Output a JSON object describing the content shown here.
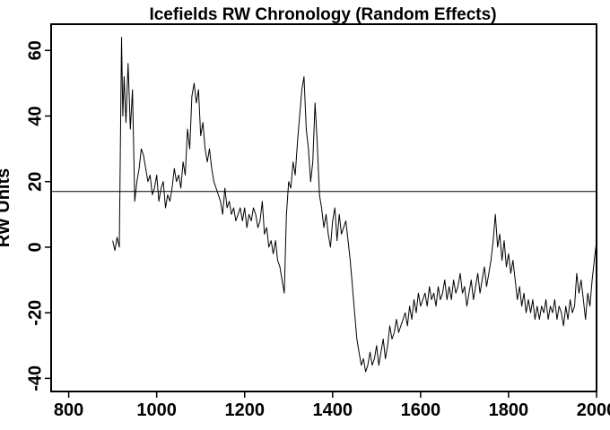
{
  "chart_data": {
    "type": "line",
    "title": "Icefields RW Chronology (Random Effects)",
    "xlabel": "",
    "ylabel": "RW Units",
    "xlim": [
      760,
      2000
    ],
    "ylim": [
      -44,
      68
    ],
    "x_ticks": [
      800,
      1000,
      1200,
      1400,
      1600,
      1800,
      2000
    ],
    "y_ticks": [
      -40,
      -20,
      0,
      20,
      40,
      60
    ],
    "reference_line": {
      "y": 17
    },
    "grid": false,
    "series": [
      {
        "name": "Icefields RW chronology",
        "points": [
          [
            900,
            2
          ],
          [
            905,
            -1
          ],
          [
            910,
            3
          ],
          [
            915,
            0
          ],
          [
            920,
            64
          ],
          [
            923,
            40
          ],
          [
            926,
            52
          ],
          [
            930,
            38
          ],
          [
            935,
            56
          ],
          [
            940,
            36
          ],
          [
            945,
            48
          ],
          [
            950,
            14
          ],
          [
            955,
            20
          ],
          [
            960,
            24
          ],
          [
            965,
            30
          ],
          [
            970,
            28
          ],
          [
            975,
            24
          ],
          [
            980,
            20
          ],
          [
            985,
            22
          ],
          [
            990,
            16
          ],
          [
            995,
            18
          ],
          [
            1000,
            22
          ],
          [
            1005,
            14
          ],
          [
            1010,
            18
          ],
          [
            1015,
            20
          ],
          [
            1020,
            12
          ],
          [
            1025,
            16
          ],
          [
            1030,
            14
          ],
          [
            1035,
            18
          ],
          [
            1040,
            24
          ],
          [
            1045,
            20
          ],
          [
            1050,
            22
          ],
          [
            1055,
            18
          ],
          [
            1060,
            26
          ],
          [
            1065,
            22
          ],
          [
            1070,
            36
          ],
          [
            1075,
            30
          ],
          [
            1080,
            46
          ],
          [
            1085,
            50
          ],
          [
            1090,
            44
          ],
          [
            1095,
            48
          ],
          [
            1100,
            34
          ],
          [
            1105,
            38
          ],
          [
            1110,
            30
          ],
          [
            1115,
            26
          ],
          [
            1120,
            30
          ],
          [
            1125,
            24
          ],
          [
            1130,
            20
          ],
          [
            1135,
            18
          ],
          [
            1140,
            16
          ],
          [
            1145,
            14
          ],
          [
            1150,
            10
          ],
          [
            1155,
            18
          ],
          [
            1160,
            12
          ],
          [
            1165,
            14
          ],
          [
            1170,
            10
          ],
          [
            1175,
            12
          ],
          [
            1180,
            8
          ],
          [
            1185,
            10
          ],
          [
            1190,
            12
          ],
          [
            1195,
            8
          ],
          [
            1200,
            12
          ],
          [
            1205,
            6
          ],
          [
            1210,
            10
          ],
          [
            1215,
            8
          ],
          [
            1220,
            12
          ],
          [
            1225,
            10
          ],
          [
            1230,
            6
          ],
          [
            1235,
            8
          ],
          [
            1240,
            14
          ],
          [
            1245,
            4
          ],
          [
            1250,
            6
          ],
          [
            1255,
            0
          ],
          [
            1260,
            2
          ],
          [
            1265,
            -2
          ],
          [
            1270,
            2
          ],
          [
            1275,
            -4
          ],
          [
            1280,
            -6
          ],
          [
            1285,
            -10
          ],
          [
            1290,
            -14
          ],
          [
            1295,
            10
          ],
          [
            1300,
            20
          ],
          [
            1305,
            18
          ],
          [
            1310,
            26
          ],
          [
            1315,
            22
          ],
          [
            1320,
            32
          ],
          [
            1325,
            40
          ],
          [
            1330,
            48
          ],
          [
            1335,
            52
          ],
          [
            1340,
            36
          ],
          [
            1345,
            30
          ],
          [
            1350,
            20
          ],
          [
            1355,
            26
          ],
          [
            1360,
            44
          ],
          [
            1365,
            32
          ],
          [
            1370,
            16
          ],
          [
            1375,
            12
          ],
          [
            1380,
            6
          ],
          [
            1385,
            10
          ],
          [
            1390,
            4
          ],
          [
            1395,
            0
          ],
          [
            1400,
            8
          ],
          [
            1405,
            12
          ],
          [
            1410,
            2
          ],
          [
            1415,
            10
          ],
          [
            1420,
            4
          ],
          [
            1425,
            6
          ],
          [
            1430,
            8
          ],
          [
            1435,
            2
          ],
          [
            1440,
            -4
          ],
          [
            1445,
            -12
          ],
          [
            1450,
            -20
          ],
          [
            1455,
            -28
          ],
          [
            1460,
            -32
          ],
          [
            1465,
            -36
          ],
          [
            1470,
            -34
          ],
          [
            1475,
            -38
          ],
          [
            1480,
            -36
          ],
          [
            1485,
            -32
          ],
          [
            1490,
            -36
          ],
          [
            1495,
            -34
          ],
          [
            1500,
            -30
          ],
          [
            1505,
            -36
          ],
          [
            1510,
            -32
          ],
          [
            1515,
            -28
          ],
          [
            1520,
            -34
          ],
          [
            1525,
            -30
          ],
          [
            1530,
            -24
          ],
          [
            1535,
            -28
          ],
          [
            1540,
            -26
          ],
          [
            1545,
            -22
          ],
          [
            1550,
            -26
          ],
          [
            1555,
            -24
          ],
          [
            1560,
            -22
          ],
          [
            1565,
            -20
          ],
          [
            1570,
            -24
          ],
          [
            1575,
            -18
          ],
          [
            1580,
            -22
          ],
          [
            1585,
            -16
          ],
          [
            1590,
            -20
          ],
          [
            1595,
            -14
          ],
          [
            1600,
            -18
          ],
          [
            1605,
            -16
          ],
          [
            1610,
            -14
          ],
          [
            1615,
            -18
          ],
          [
            1620,
            -12
          ],
          [
            1625,
            -16
          ],
          [
            1630,
            -14
          ],
          [
            1635,
            -18
          ],
          [
            1640,
            -12
          ],
          [
            1645,
            -16
          ],
          [
            1650,
            -14
          ],
          [
            1655,
            -10
          ],
          [
            1660,
            -16
          ],
          [
            1665,
            -12
          ],
          [
            1670,
            -16
          ],
          [
            1675,
            -10
          ],
          [
            1680,
            -14
          ],
          [
            1685,
            -12
          ],
          [
            1690,
            -8
          ],
          [
            1695,
            -14
          ],
          [
            1700,
            -12
          ],
          [
            1705,
            -18
          ],
          [
            1710,
            -14
          ],
          [
            1715,
            -10
          ],
          [
            1720,
            -16
          ],
          [
            1725,
            -12
          ],
          [
            1730,
            -8
          ],
          [
            1735,
            -14
          ],
          [
            1740,
            -10
          ],
          [
            1745,
            -6
          ],
          [
            1750,
            -12
          ],
          [
            1755,
            -8
          ],
          [
            1760,
            -4
          ],
          [
            1765,
            2
          ],
          [
            1770,
            10
          ],
          [
            1775,
            0
          ],
          [
            1780,
            4
          ],
          [
            1785,
            -4
          ],
          [
            1790,
            2
          ],
          [
            1795,
            -6
          ],
          [
            1800,
            -2
          ],
          [
            1805,
            -8
          ],
          [
            1810,
            -4
          ],
          [
            1815,
            -10
          ],
          [
            1820,
            -16
          ],
          [
            1825,
            -12
          ],
          [
            1830,
            -18
          ],
          [
            1835,
            -14
          ],
          [
            1840,
            -20
          ],
          [
            1845,
            -16
          ],
          [
            1850,
            -20
          ],
          [
            1855,
            -16
          ],
          [
            1860,
            -22
          ],
          [
            1865,
            -18
          ],
          [
            1870,
            -22
          ],
          [
            1875,
            -18
          ],
          [
            1880,
            -20
          ],
          [
            1885,
            -16
          ],
          [
            1890,
            -22
          ],
          [
            1895,
            -18
          ],
          [
            1900,
            -20
          ],
          [
            1905,
            -16
          ],
          [
            1910,
            -22
          ],
          [
            1915,
            -18
          ],
          [
            1920,
            -20
          ],
          [
            1925,
            -24
          ],
          [
            1930,
            -18
          ],
          [
            1935,
            -22
          ],
          [
            1940,
            -16
          ],
          [
            1945,
            -20
          ],
          [
            1950,
            -18
          ],
          [
            1955,
            -8
          ],
          [
            1960,
            -14
          ],
          [
            1965,
            -10
          ],
          [
            1970,
            -16
          ],
          [
            1975,
            -22
          ],
          [
            1980,
            -14
          ],
          [
            1985,
            -18
          ],
          [
            1990,
            -10
          ],
          [
            1995,
            -4
          ],
          [
            2000,
            2
          ]
        ]
      }
    ]
  }
}
